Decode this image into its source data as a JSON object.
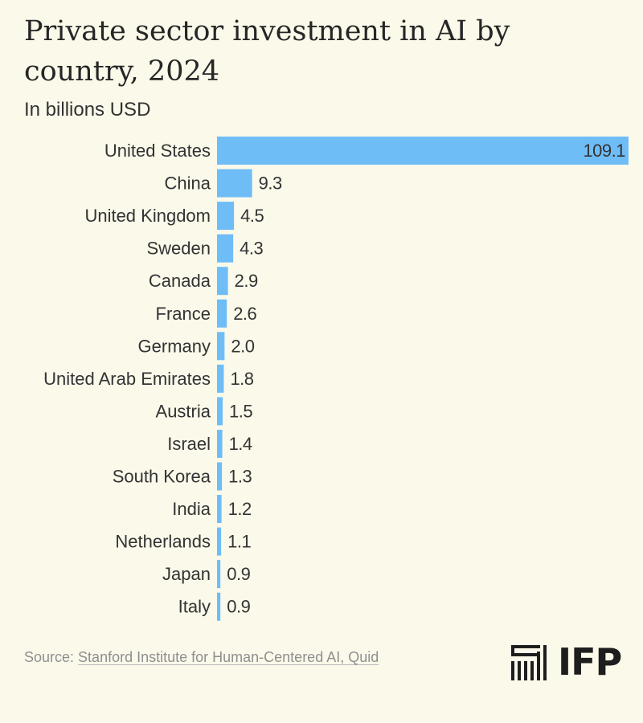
{
  "chart_data": {
    "type": "bar",
    "orientation": "horizontal",
    "title": "Private sector investment in AI by country, 2024",
    "subtitle": "In billions USD",
    "categories": [
      "United States",
      "China",
      "United Kingdom",
      "Sweden",
      "Canada",
      "France",
      "Germany",
      "United Arab Emirates",
      "Austria",
      "Israel",
      "South Korea",
      "India",
      "Netherlands",
      "Japan",
      "Italy"
    ],
    "values": [
      109.1,
      9.3,
      4.5,
      4.3,
      2.9,
      2.6,
      2.0,
      1.8,
      1.5,
      1.4,
      1.3,
      1.2,
      1.1,
      0.9,
      0.9
    ],
    "value_labels": [
      "109.1",
      "9.3",
      "4.5",
      "4.3",
      "2.9",
      "2.6",
      "2.0",
      "1.8",
      "1.5",
      "1.4",
      "1.3",
      "1.2",
      "1.1",
      "0.9",
      "0.9"
    ],
    "xlim": [
      0,
      109.1
    ],
    "xlabel": "",
    "ylabel": "",
    "grid": false,
    "legend": "none",
    "bar_color": "#6fbdf7"
  },
  "footer": {
    "source_prefix": "Source: ",
    "source_link": "Stanford Institute for Human-Centered AI, Quid"
  },
  "logo": {
    "text": "IFP",
    "icon": "ifp-stairs-logo-icon"
  }
}
